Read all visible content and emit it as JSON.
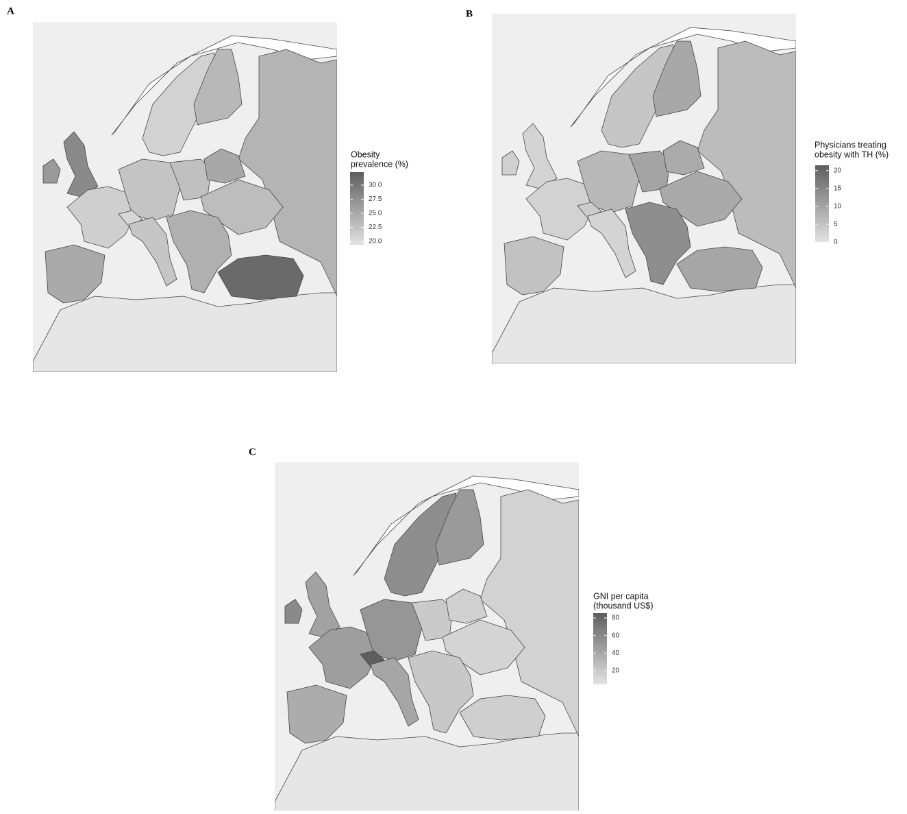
{
  "panels": [
    {
      "label": "A",
      "legend": {
        "title": [
          "Obesity",
          "prevalence (%)"
        ],
        "lim": [
          19.4,
          32.3
        ],
        "ticks": [
          {
            "value": 20,
            "label": "20.0"
          },
          {
            "value": 22.5,
            "label": "22.5"
          },
          {
            "value": 25,
            "label": "25.0"
          },
          {
            "value": 27.5,
            "label": "27.5"
          },
          {
            "value": 30,
            "label": "30.0"
          }
        ]
      }
    },
    {
      "label": "B",
      "legend": {
        "title": [
          "Physicians treating",
          "obesity with TH (%)"
        ],
        "lim": [
          0,
          21.5
        ],
        "ticks": [
          0,
          5,
          10,
          15,
          20
        ]
      }
    },
    {
      "label": "C",
      "legend": {
        "title": [
          "GNI per capita",
          "(thousand US$)"
        ],
        "lim": [
          4.4,
          85.5
        ],
        "ticks": [
          20,
          40,
          60,
          80
        ]
      }
    }
  ]
}
